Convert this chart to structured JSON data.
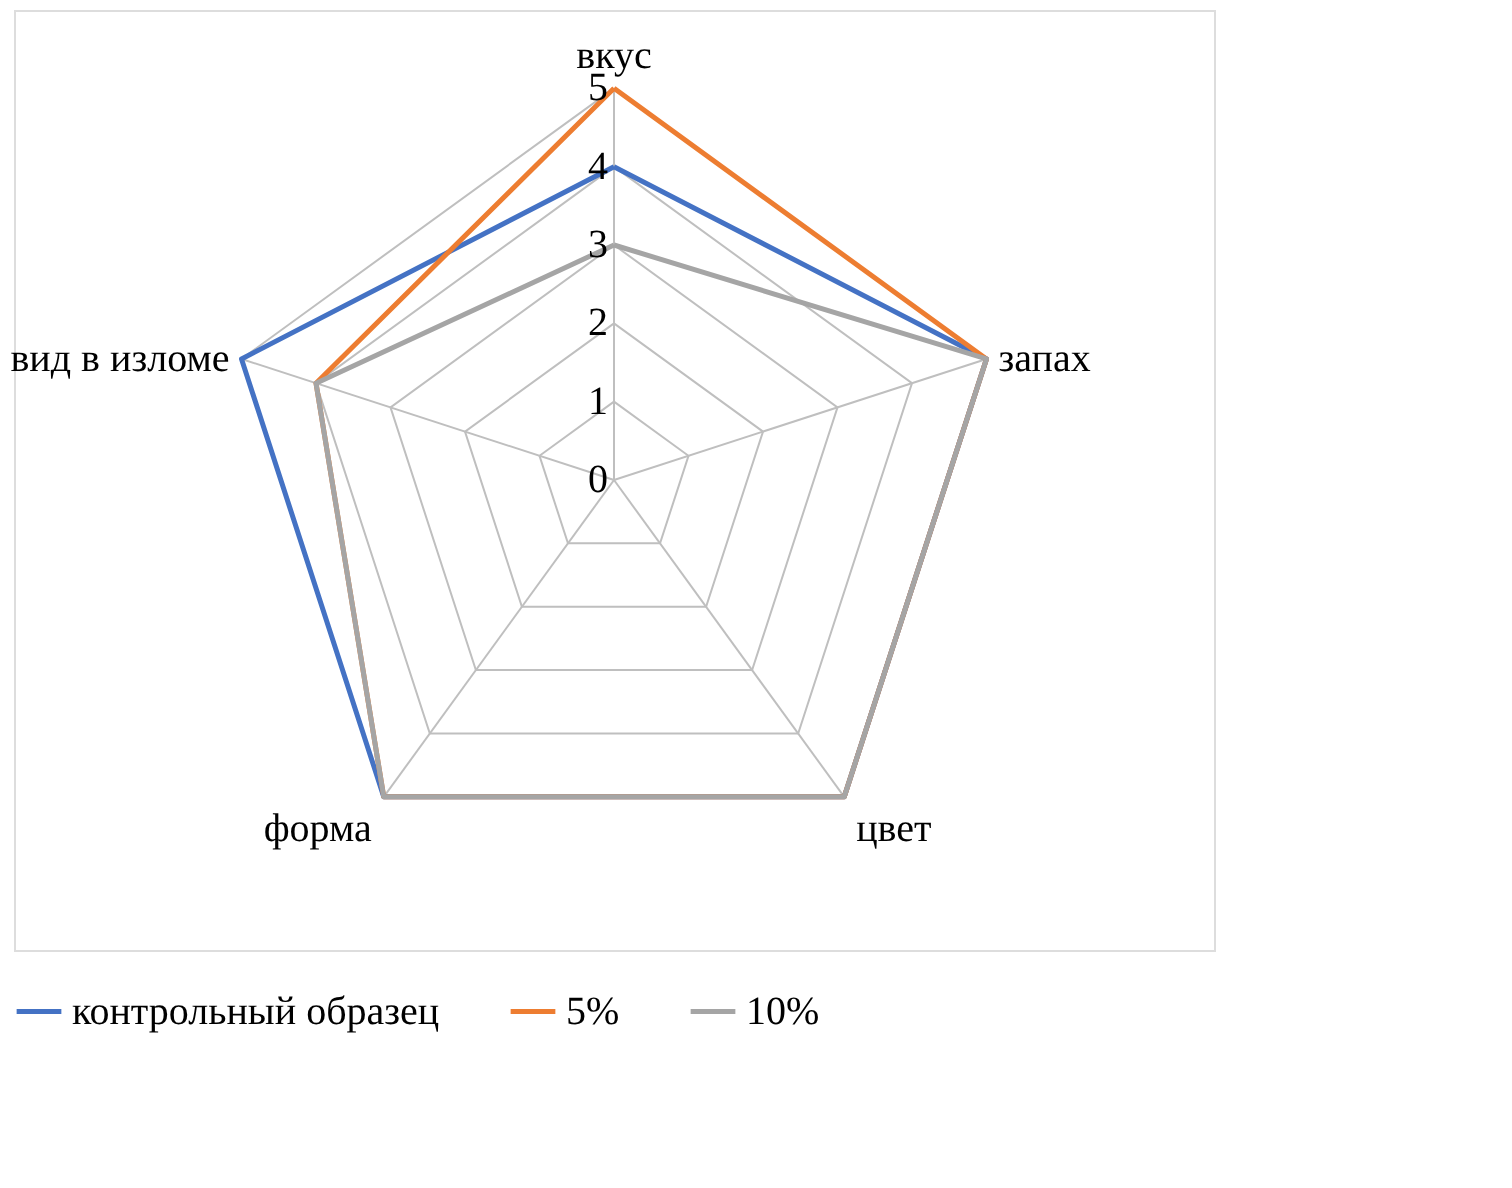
{
  "chart_data": {
    "type": "radar",
    "categories": [
      "вкус",
      "запах",
      "цвет",
      "форма",
      "вид в изломе"
    ],
    "series": [
      {
        "name": "контрольный образец",
        "color": "#4472c4",
        "values": [
          4,
          5,
          5,
          5,
          5
        ]
      },
      {
        "name": "5%",
        "color": "#ed7d31",
        "values": [
          5,
          5,
          5,
          5,
          4
        ]
      },
      {
        "name": "10%",
        "color": "#a5a5a5",
        "values": [
          3,
          5,
          5,
          5,
          4
        ]
      }
    ],
    "ylim": [
      0,
      5
    ],
    "yticks": [
      0,
      1,
      2,
      3,
      4,
      5
    ],
    "grid": true,
    "legend": "bottom"
  }
}
